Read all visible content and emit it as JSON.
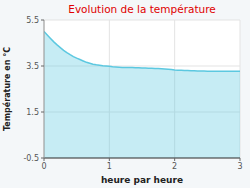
{
  "chart_data": {
    "type": "area",
    "title": "Evolution de la température",
    "x_label": "heure par heure",
    "y_label": "Température en °C",
    "color": "#5cc8e0",
    "xlim": [
      0,
      3
    ],
    "ylim": [
      -0.5,
      5.5
    ],
    "xticks": [
      0,
      1,
      2,
      3
    ],
    "yticks": [
      -0.5,
      1.5,
      3.5,
      5.5
    ],
    "grid": true,
    "x": [
      0,
      0.05,
      0.1,
      0.15,
      0.2,
      0.25,
      0.3,
      0.35,
      0.4,
      0.45,
      0.5,
      0.55,
      0.6,
      0.65,
      0.7,
      0.75,
      0.8,
      0.85,
      0.9,
      0.95,
      1.0,
      1.05,
      1.1,
      1.15,
      1.2,
      1.25,
      1.3,
      1.35,
      1.4,
      1.45,
      1.5,
      1.55,
      1.6,
      1.65,
      1.7,
      1.75,
      1.8,
      1.85,
      1.9,
      1.95,
      2.0,
      2.05,
      2.1,
      2.15,
      2.2,
      2.25,
      2.3,
      2.35,
      2.4,
      2.45,
      2.5,
      2.55,
      2.6,
      2.65,
      2.7,
      2.75,
      2.8,
      2.85,
      2.9,
      2.95,
      3.0
    ],
    "values": [
      5.0,
      4.85,
      4.7,
      4.55,
      4.42,
      4.3,
      4.18,
      4.08,
      3.99,
      3.91,
      3.84,
      3.78,
      3.72,
      3.66,
      3.62,
      3.58,
      3.55,
      3.53,
      3.51,
      3.5,
      3.49,
      3.47,
      3.46,
      3.45,
      3.44,
      3.44,
      3.43,
      3.43,
      3.42,
      3.42,
      3.41,
      3.41,
      3.4,
      3.4,
      3.39,
      3.39,
      3.38,
      3.37,
      3.36,
      3.35,
      3.33,
      3.32,
      3.31,
      3.3,
      3.3,
      3.29,
      3.29,
      3.28,
      3.28,
      3.28,
      3.27,
      3.27,
      3.27,
      3.27,
      3.27,
      3.27,
      3.27,
      3.27,
      3.27,
      3.27,
      3.27
    ]
  }
}
